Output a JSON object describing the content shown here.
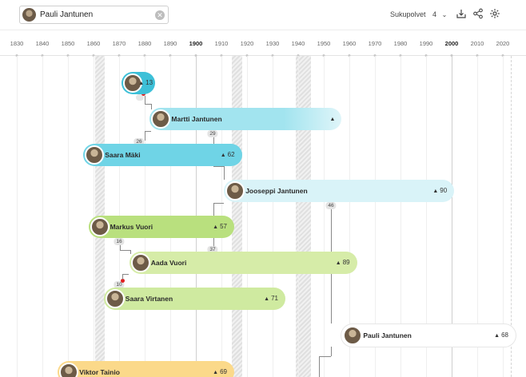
{
  "search": {
    "value": "Pauli Jantunen",
    "clear_icon": "clear-icon",
    "avatar_icon": "person-avatar"
  },
  "toolbar": {
    "generations_label": "Sukupolvet",
    "generations_value": "4",
    "download_icon": "download-icon",
    "share_icon": "share-icon",
    "settings_icon": "gear-icon"
  },
  "timeline": {
    "years": [
      "1830",
      "1840",
      "1850",
      "1860",
      "1870",
      "1880",
      "1890",
      "1900",
      "1910",
      "1920",
      "1930",
      "1940",
      "1950",
      "1960",
      "1970",
      "1980",
      "1990",
      "2000",
      "2010",
      "2020"
    ],
    "bold_years": [
      "1900",
      "2000"
    ]
  },
  "persons": [
    {
      "id": "p13",
      "name": "",
      "age": "13",
      "color": "#3dc0d8",
      "birth": 1871,
      "death": 1884
    },
    {
      "id": "martti",
      "name": "Martti Jantunen",
      "age": "",
      "color": "#a2e4ef",
      "birth": 1882,
      "death": 1957
    },
    {
      "id": "saara-maki",
      "name": "Saara Mäki",
      "age": "62",
      "color": "#6fd4e6",
      "birth": 1856,
      "death": 1918
    },
    {
      "id": "jooseppi",
      "name": "Jooseppi Jantunen",
      "age": "90",
      "color": "#d9f3f8",
      "birth": 1911,
      "death": 2001
    },
    {
      "id": "markus",
      "name": "Markus Vuori",
      "age": "57",
      "color": "#b9e07e",
      "birth": 1858,
      "death": 1915
    },
    {
      "id": "aada",
      "name": "Aada Vuori",
      "age": "89",
      "color": "#d6eca8",
      "birth": 1874,
      "death": 1963
    },
    {
      "id": "saara-virtanen",
      "name": "Saara Virtanen",
      "age": "71",
      "color": "#cfeaa0",
      "birth": 1864,
      "death": 1935
    },
    {
      "id": "pauli",
      "name": "Pauli Jantunen",
      "age": "68",
      "color": "#ffffff",
      "birth": 1957,
      "death": 2025
    },
    {
      "id": "viktor",
      "name": "Viktor Tainio",
      "age": "69",
      "color": "#fbd98a",
      "birth": 1846,
      "death": 1915
    }
  ],
  "connector_labels": [
    "26",
    "29",
    "46",
    "16",
    "37",
    "10"
  ]
}
